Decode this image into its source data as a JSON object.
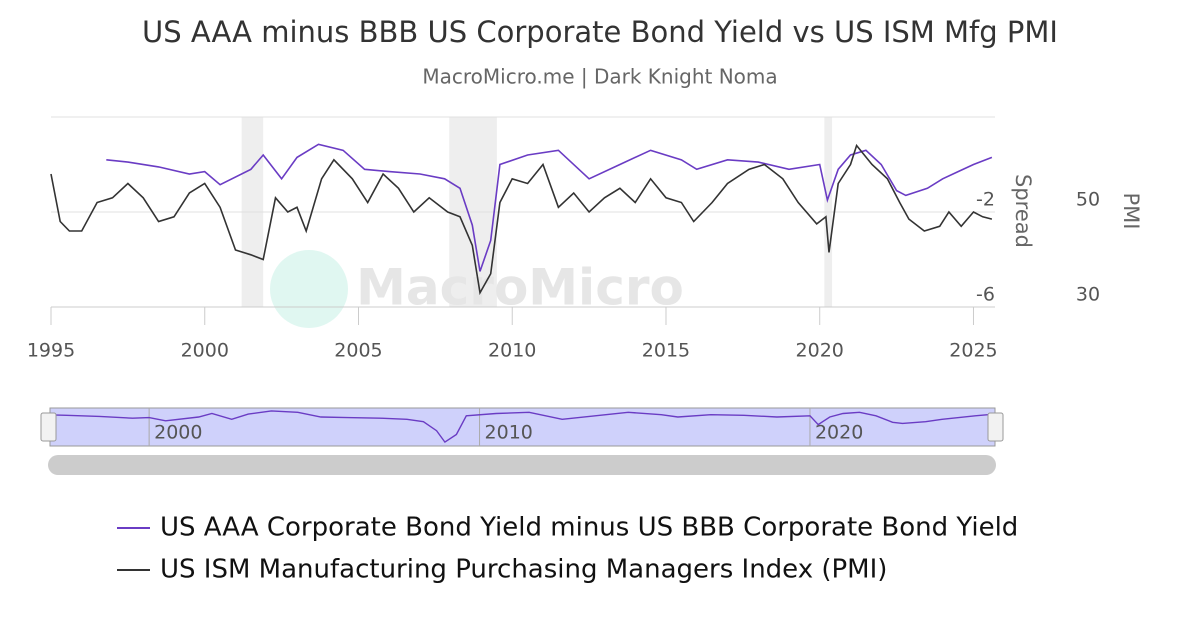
{
  "chart_data": {
    "type": "line",
    "title": "US AAA minus BBB US Corporate Bond Yield vs US ISM Mfg PMI",
    "subtitle": "MacroMicro.me | Dark Knight Noma",
    "watermark": "MacroMicro",
    "ylabel": "Spread",
    "y2label": "PMI",
    "xlim": [
      1995,
      2025.7
    ],
    "xticks": [
      1995,
      2000,
      2005,
      2010,
      2015,
      2020,
      2025
    ],
    "ylim": [
      -6,
      2
    ],
    "yticks": [
      -6,
      -2
    ],
    "y2lim": [
      30,
      70
    ],
    "y2ticks": [
      30,
      50
    ],
    "recessions": [
      [
        2001.2,
        2001.9
      ],
      [
        2007.95,
        2009.5
      ],
      [
        2020.15,
        2020.4
      ]
    ],
    "navigator_xlim": [
      1997,
      2025.6
    ],
    "navigator_ticks": [
      2000,
      2010,
      2020
    ],
    "series": [
      {
        "name": "US AAA Corporate Bond Yield minus US BBB Corporate Bond Yield",
        "color": "#6a3cc4",
        "axis": "y",
        "x": [
          1996.8,
          1997.5,
          1998.5,
          1999.5,
          2000.0,
          2000.5,
          2001.5,
          2001.9,
          2002.5,
          2003.0,
          2003.7,
          2004.5,
          2005.2,
          2006.0,
          2007.0,
          2007.8,
          2008.3,
          2008.7,
          2008.95,
          2009.3,
          2009.6,
          2010.5,
          2011.5,
          2012.5,
          2013.5,
          2014.5,
          2015.5,
          2016.0,
          2017.0,
          2018.0,
          2019.0,
          2020.0,
          2020.25,
          2020.6,
          2021.0,
          2021.5,
          2022.0,
          2022.5,
          2022.8,
          2023.5,
          2024.0,
          2024.5,
          2025.0,
          2025.6
        ],
        "values": [
          0.2,
          0.1,
          -0.1,
          -0.4,
          -0.3,
          -0.85,
          -0.2,
          0.4,
          -0.6,
          0.3,
          0.85,
          0.6,
          -0.2,
          -0.3,
          -0.4,
          -0.6,
          -1.0,
          -2.55,
          -4.5,
          -3.2,
          0.0,
          0.4,
          0.6,
          -0.6,
          0.0,
          0.6,
          0.2,
          -0.2,
          0.2,
          0.1,
          -0.2,
          0.0,
          -1.5,
          -0.2,
          0.4,
          0.6,
          0.0,
          -1.1,
          -1.3,
          -1.0,
          -0.6,
          -0.3,
          0.0,
          0.3
        ]
      },
      {
        "name": "US ISM Manufacturing Purchasing Managers Index (PMI)",
        "color": "#333333",
        "axis": "y2",
        "x": [
          1995.0,
          1995.3,
          1995.6,
          1996.0,
          1996.5,
          1997.0,
          1997.5,
          1998.0,
          1998.5,
          1999.0,
          1999.5,
          2000.0,
          2000.5,
          2001.0,
          2001.5,
          2001.9,
          2002.3,
          2002.7,
          2003.0,
          2003.3,
          2003.8,
          2004.2,
          2004.8,
          2005.3,
          2005.8,
          2006.3,
          2006.8,
          2007.3,
          2007.9,
          2008.3,
          2008.7,
          2008.95,
          2009.3,
          2009.6,
          2010.0,
          2010.5,
          2011.0,
          2011.5,
          2012.0,
          2012.5,
          2013.0,
          2013.5,
          2014.0,
          2014.5,
          2015.0,
          2015.5,
          2015.9,
          2016.5,
          2017.0,
          2017.7,
          2018.2,
          2018.8,
          2019.3,
          2019.9,
          2020.2,
          2020.3,
          2020.6,
          2021.0,
          2021.2,
          2021.7,
          2022.2,
          2022.6,
          2022.9,
          2023.4,
          2023.9,
          2024.2,
          2024.6,
          2025.0,
          2025.3,
          2025.6
        ],
        "values": [
          58,
          48,
          46,
          46,
          52,
          53,
          56,
          53,
          48,
          49,
          54,
          56,
          51,
          42,
          41,
          40,
          53,
          50,
          51,
          46,
          57,
          61,
          57,
          52,
          58,
          55,
          50,
          53,
          50,
          49,
          43,
          33,
          37,
          52,
          57,
          56,
          60,
          51,
          54,
          50,
          53,
          55,
          52,
          57,
          53,
          52,
          48,
          52,
          56,
          59,
          60,
          57,
          52,
          47.5,
          49,
          41.5,
          56,
          60,
          64,
          60,
          57,
          52,
          48.5,
          46,
          47,
          50,
          47,
          50,
          49,
          48.5
        ]
      }
    ]
  }
}
